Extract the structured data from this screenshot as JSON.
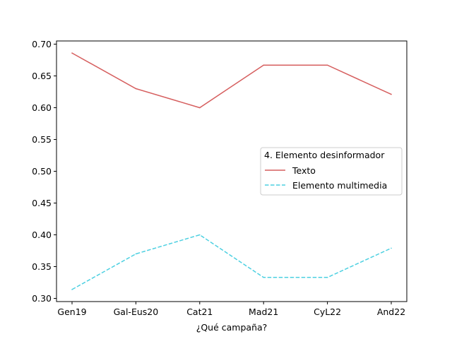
{
  "chart_data": {
    "type": "line",
    "title": "",
    "xlabel": "¿Qué campaña?",
    "ylabel": "",
    "categories": [
      "Gen19",
      "Gal-Eus20",
      "Cat21",
      "Mad21",
      "CyL22",
      "And22"
    ],
    "ylim": [
      0.295,
      0.705
    ],
    "yticks": [
      0.3,
      0.35,
      0.4,
      0.45,
      0.5,
      0.55,
      0.6,
      0.65,
      0.7
    ],
    "ytick_labels": [
      "0.30",
      "0.35",
      "0.40",
      "0.45",
      "0.50",
      "0.55",
      "0.60",
      "0.65",
      "0.70"
    ],
    "grid": false,
    "legend": {
      "title": "4. Elemento desinformador",
      "placement": "center-right"
    },
    "series": [
      {
        "name": "Texto",
        "values": [
          0.686,
          0.63,
          0.6,
          0.667,
          0.667,
          0.621
        ],
        "color": "#d65f5f",
        "style": "solid"
      },
      {
        "name": "Elemento multimedia",
        "values": [
          0.314,
          0.37,
          0.4,
          0.333,
          0.333,
          0.379
        ],
        "color": "#4dd0e1",
        "style": "dashed"
      }
    ]
  }
}
